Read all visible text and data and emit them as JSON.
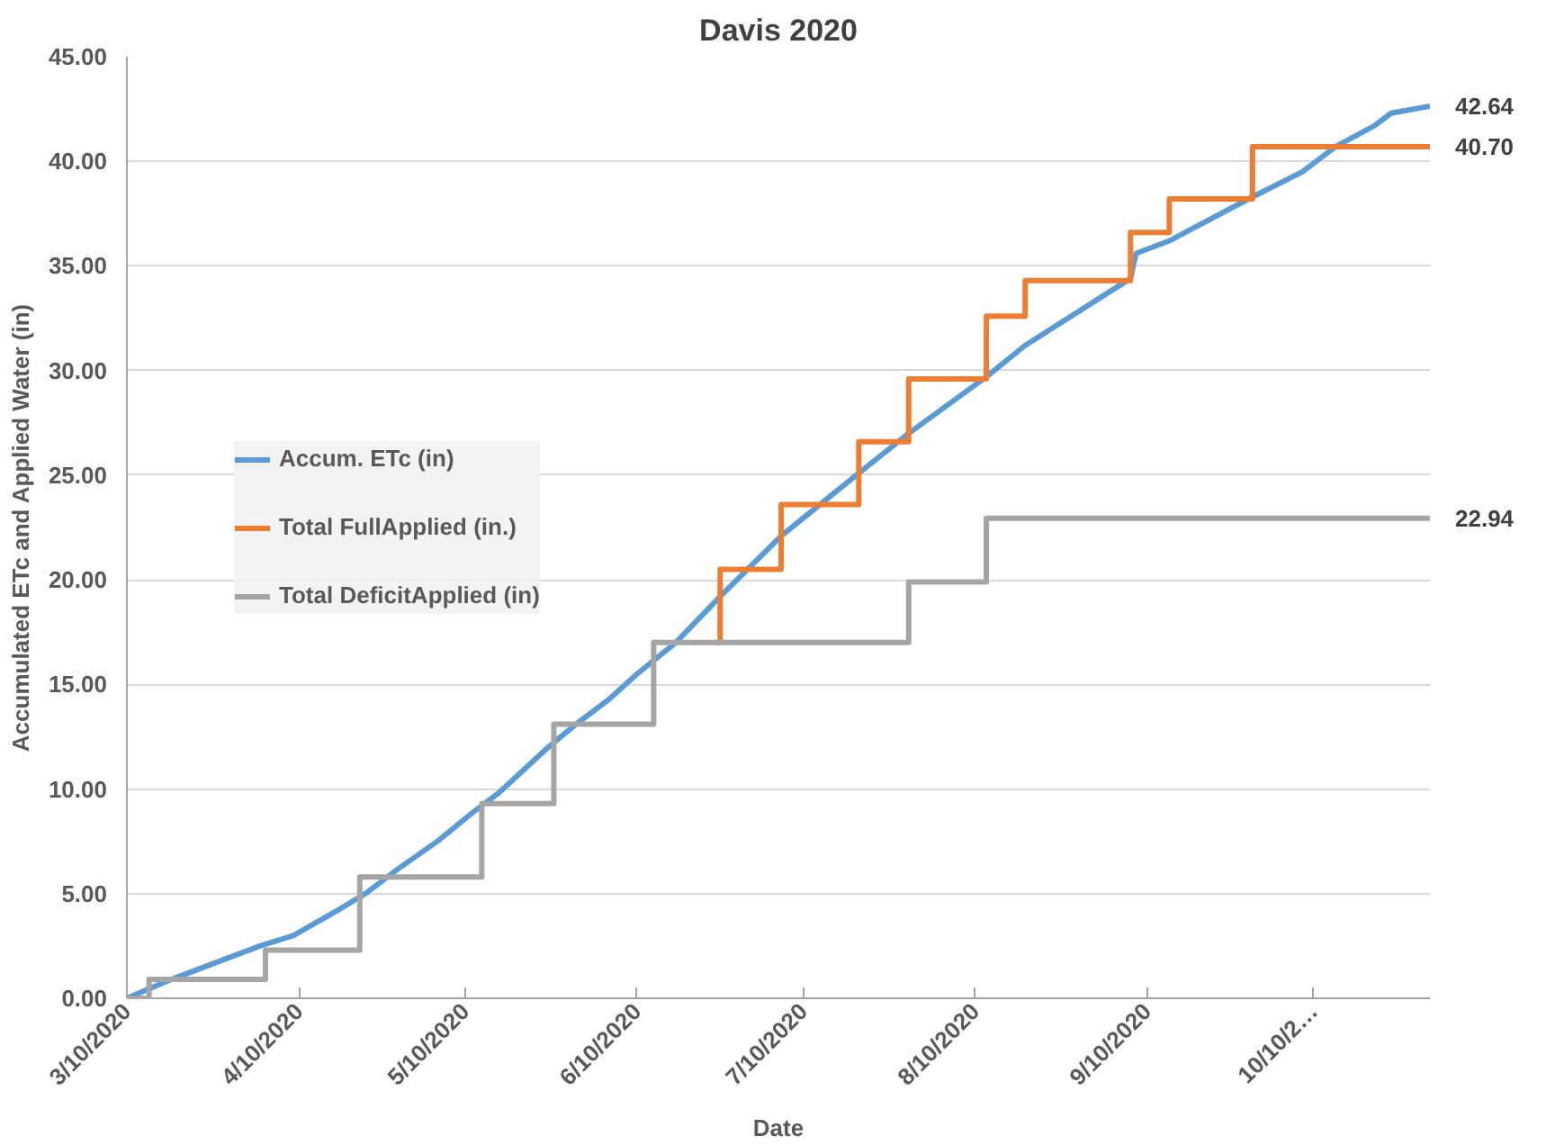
{
  "chart_data": {
    "type": "line",
    "title": "Davis 2020",
    "xlabel": "Date",
    "ylabel": "Accumulated ETc and Applied Water (in)",
    "xlim": [
      "2020-03-10",
      "2020-10-31"
    ],
    "xticks": [
      {
        "value": "2020-03-10",
        "label": "3/10/2020"
      },
      {
        "value": "2020-04-10",
        "label": "4/10/2020"
      },
      {
        "value": "2020-05-10",
        "label": "5/10/2020"
      },
      {
        "value": "2020-06-10",
        "label": "6/10/2020"
      },
      {
        "value": "2020-07-10",
        "label": "7/10/2020"
      },
      {
        "value": "2020-08-10",
        "label": "8/10/2020"
      },
      {
        "value": "2020-09-10",
        "label": "9/10/2020"
      },
      {
        "value": "2020-10-10",
        "label": "10/10/2…"
      }
    ],
    "ylim": [
      0,
      45
    ],
    "yticks": [
      {
        "value": 0,
        "label": "0.00"
      },
      {
        "value": 5,
        "label": "5.00"
      },
      {
        "value": 10,
        "label": "10.00"
      },
      {
        "value": 15,
        "label": "15.00"
      },
      {
        "value": 20,
        "label": "20.00"
      },
      {
        "value": 25,
        "label": "25.00"
      },
      {
        "value": 30,
        "label": "30.00"
      },
      {
        "value": 35,
        "label": "35.00"
      },
      {
        "value": 40,
        "label": "40.00"
      },
      {
        "value": 45,
        "label": "45.00"
      }
    ],
    "grid": "y",
    "legend": "left",
    "line_style": "solid",
    "series": [
      {
        "name": "Accum. ETc (in)",
        "color": "#5b9bd5",
        "x": [
          "2020-03-10",
          "2020-03-18",
          "2020-03-27",
          "2020-04-03",
          "2020-04-09",
          "2020-04-17",
          "2020-04-22",
          "2020-04-28",
          "2020-05-05",
          "2020-05-11",
          "2020-05-16",
          "2020-05-25",
          "2020-05-30",
          "2020-06-05",
          "2020-06-10",
          "2020-06-17",
          "2020-06-25",
          "2020-07-06",
          "2020-07-20",
          "2020-07-29",
          "2020-08-12",
          "2020-08-19",
          "2020-09-07",
          "2020-09-08",
          "2020-09-14",
          "2020-09-29",
          "2020-10-08",
          "2020-10-14",
          "2020-10-21",
          "2020-10-24",
          "2020-10-31"
        ],
        "values": [
          0,
          0.9,
          1.8,
          2.5,
          3.0,
          4.2,
          5.0,
          6.2,
          7.5,
          8.8,
          9.8,
          12.0,
          13.1,
          14.3,
          15.5,
          17.0,
          19.2,
          22.1,
          25.1,
          27.0,
          29.7,
          31.2,
          34.4,
          35.6,
          36.2,
          38.3,
          39.5,
          40.7,
          41.7,
          42.3,
          42.64
        ],
        "value_labels": [
          null,
          null,
          null,
          null,
          null,
          null,
          null,
          null,
          null,
          null,
          null,
          null,
          null,
          null,
          null,
          null,
          null,
          null,
          null,
          null,
          null,
          null,
          null,
          null,
          null,
          null,
          null,
          null,
          null,
          null,
          "42.64"
        ]
      },
      {
        "name": "Total FullApplied (in.)",
        "type": "step",
        "color": "#ed7d31",
        "x": [
          "2020-06-24",
          "2020-06-25",
          "2020-07-06",
          "2020-07-20",
          "2020-07-29",
          "2020-08-12",
          "2020-08-19",
          "2020-09-07",
          "2020-09-14",
          "2020-09-29",
          "2020-10-31"
        ],
        "values": [
          17.0,
          20.5,
          23.6,
          26.6,
          29.6,
          32.6,
          34.3,
          36.6,
          38.2,
          40.7,
          40.7
        ],
        "value_labels": [
          null,
          null,
          null,
          null,
          null,
          null,
          null,
          null,
          null,
          null,
          "40.70"
        ]
      },
      {
        "name": "Total DeficitApplied (in)",
        "type": "step",
        "color": "#a5a5a5",
        "x": [
          "2020-03-10",
          "2020-03-14",
          "2020-04-04",
          "2020-04-21",
          "2020-05-13",
          "2020-05-26",
          "2020-06-13",
          "2020-07-29",
          "2020-08-12",
          "2020-10-31"
        ],
        "values": [
          0,
          0.9,
          2.3,
          5.8,
          9.3,
          13.1,
          17.0,
          19.9,
          22.94,
          22.94
        ],
        "value_labels": [
          null,
          null,
          null,
          null,
          null,
          null,
          null,
          null,
          null,
          "22.94"
        ]
      }
    ]
  }
}
